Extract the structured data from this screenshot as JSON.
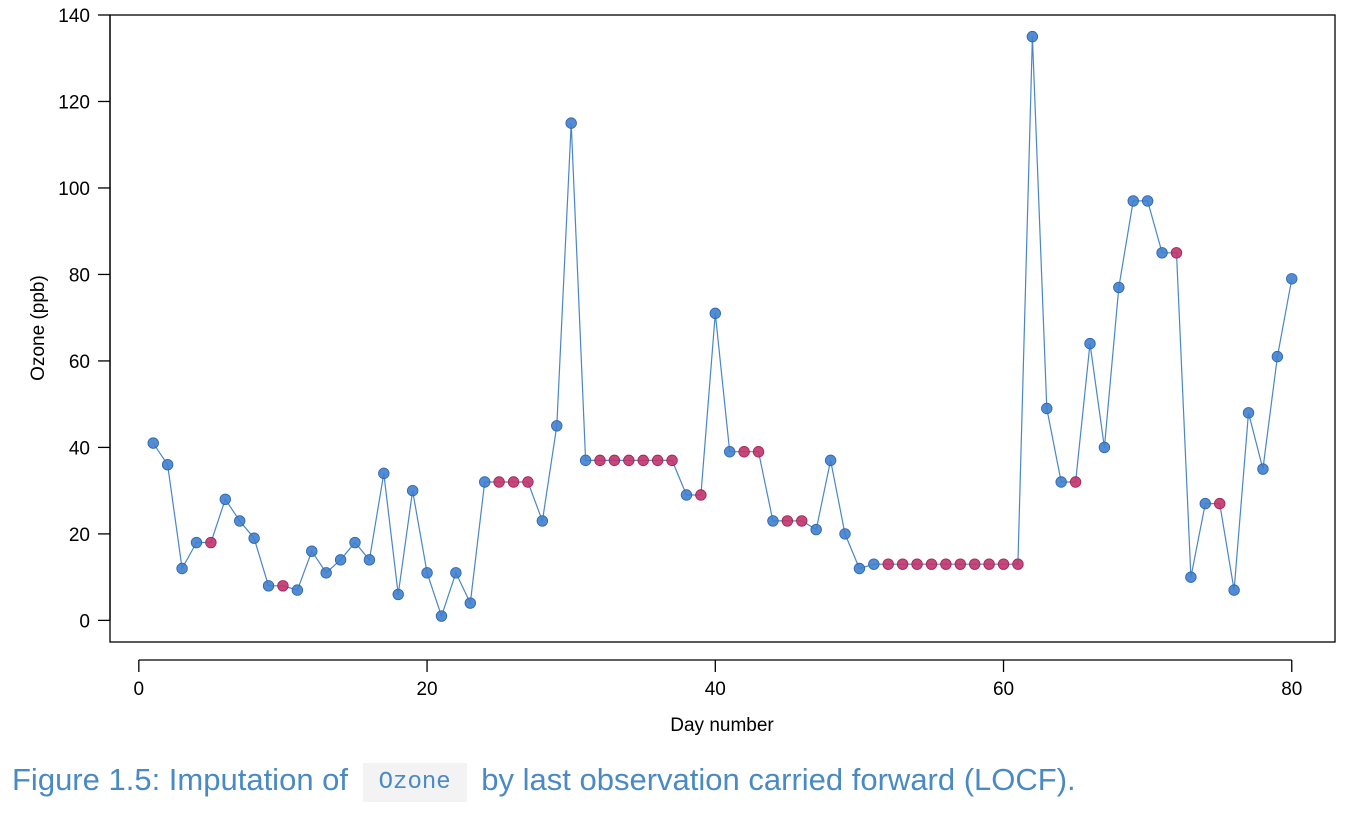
{
  "chart_data": {
    "type": "scatter",
    "title": "",
    "xlabel": "Day number",
    "ylabel": "Ozone (ppb)",
    "xlim": [
      -2,
      83
    ],
    "ylim": [
      -5,
      140
    ],
    "xticks": [
      0,
      20,
      40,
      60,
      80
    ],
    "yticks": [
      0,
      20,
      40,
      60,
      80,
      100,
      120,
      140
    ],
    "grid": false,
    "legend": "none",
    "colors": {
      "observed": "#3f7fcf",
      "imputed": "#c2336b",
      "line": "#4a86c6"
    },
    "x": [
      1,
      2,
      3,
      4,
      5,
      6,
      7,
      8,
      9,
      10,
      11,
      12,
      13,
      14,
      15,
      16,
      17,
      18,
      19,
      20,
      21,
      22,
      23,
      24,
      25,
      26,
      27,
      28,
      29,
      30,
      31,
      32,
      33,
      34,
      35,
      36,
      37,
      38,
      39,
      40,
      41,
      42,
      43,
      44,
      45,
      46,
      47,
      48,
      49,
      50,
      51,
      52,
      53,
      54,
      55,
      56,
      57,
      58,
      59,
      60,
      61,
      62,
      63,
      64,
      65,
      66,
      67,
      68,
      69,
      70,
      71,
      72,
      73,
      74,
      75,
      76,
      77,
      78,
      79,
      80
    ],
    "y": [
      41,
      36,
      12,
      18,
      18,
      28,
      23,
      19,
      8,
      8,
      7,
      16,
      11,
      14,
      18,
      14,
      34,
      6,
      30,
      11,
      1,
      11,
      4,
      32,
      32,
      32,
      32,
      23,
      45,
      115,
      37,
      37,
      37,
      37,
      37,
      37,
      37,
      29,
      29,
      71,
      39,
      39,
      39,
      23,
      23,
      23,
      21,
      37,
      20,
      12,
      13,
      13,
      13,
      13,
      13,
      13,
      13,
      13,
      13,
      13,
      13,
      135,
      49,
      32,
      32,
      64,
      40,
      77,
      97,
      97,
      85,
      85,
      10,
      27,
      27,
      7,
      48,
      35,
      61,
      79
    ],
    "imputed": [
      0,
      0,
      0,
      0,
      1,
      0,
      0,
      0,
      0,
      1,
      0,
      0,
      0,
      0,
      0,
      0,
      0,
      0,
      0,
      0,
      0,
      0,
      0,
      0,
      1,
      1,
      1,
      0,
      0,
      0,
      0,
      1,
      1,
      1,
      1,
      1,
      1,
      0,
      1,
      0,
      0,
      1,
      1,
      0,
      1,
      1,
      0,
      0,
      0,
      0,
      0,
      1,
      1,
      1,
      1,
      1,
      1,
      1,
      1,
      1,
      1,
      0,
      0,
      0,
      1,
      0,
      0,
      0,
      0,
      0,
      0,
      1,
      0,
      0,
      1,
      0,
      0,
      0,
      0,
      0
    ]
  },
  "caption": {
    "prefix": "Figure 1.5: Imputation of",
    "code": "Ozone",
    "suffix": "by last observation carried forward (LOCF)."
  }
}
